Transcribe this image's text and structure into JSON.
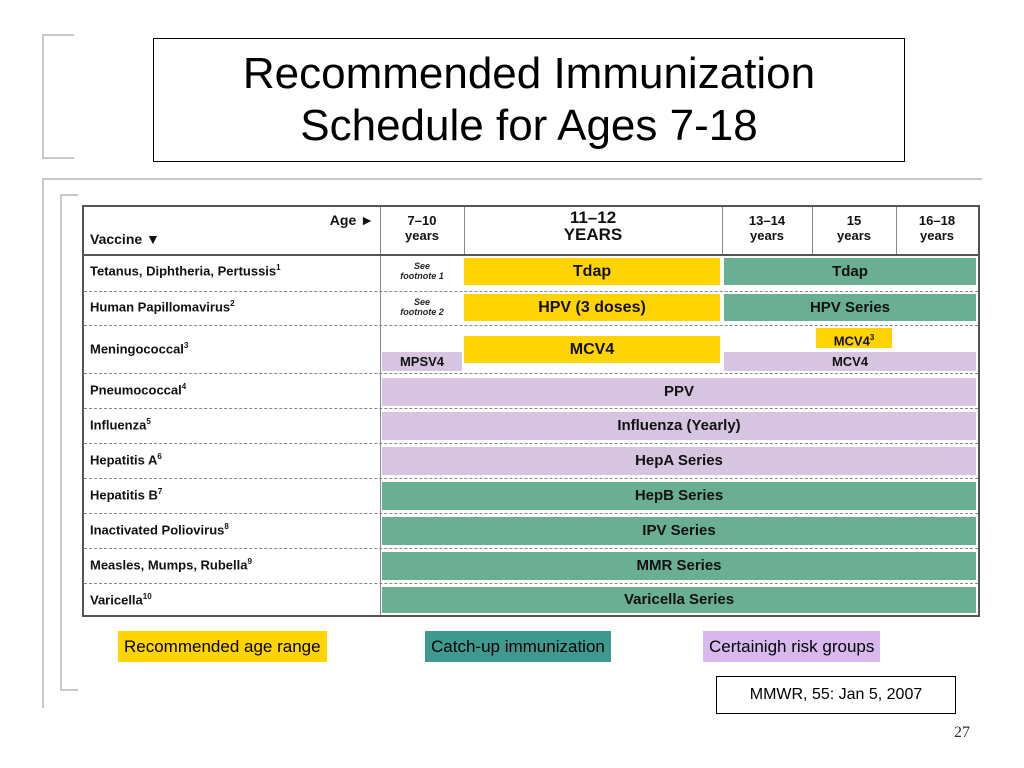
{
  "slide": {
    "title": "Recommended Immunization\nSchedule for Ages 7-18",
    "page_number": "27",
    "source": "MMWR, 55: Jan 5, 2007"
  },
  "table": {
    "age_header": "Age ►",
    "vaccine_header": "Vaccine ▼",
    "columns": [
      {
        "line1": "7–10",
        "line2": "years"
      },
      {
        "line1": "11–12",
        "line2": "YEARS"
      },
      {
        "line1": "13–14",
        "line2": "years"
      },
      {
        "line1": "15",
        "line2": "years"
      },
      {
        "line1": "16–18",
        "line2": "years"
      }
    ],
    "vaccines": [
      {
        "name": "Tetanus, Diphtheria, Pertussis",
        "note": "1"
      },
      {
        "name": "Human Papillomavirus",
        "note": "2"
      },
      {
        "name": "Meningococcal",
        "note": "3"
      },
      {
        "name": "Pneumococcal",
        "note": "4"
      },
      {
        "name": "Influenza",
        "note": "5"
      },
      {
        "name": "Hepatitis A",
        "note": "6"
      },
      {
        "name": "Hepatitis B",
        "note": "7"
      },
      {
        "name": "Inactivated Poliovirus",
        "note": "8"
      },
      {
        "name": "Measles, Mumps, Rubella",
        "note": "9"
      },
      {
        "name": "Varicella",
        "note": "10"
      }
    ],
    "footnotes": [
      {
        "line1": "See",
        "line2": "footnote 1"
      },
      {
        "line1": "See",
        "line2": "footnote 2"
      }
    ],
    "bars": {
      "tdap_main": "Tdap",
      "tdap_catchup": "Tdap",
      "hpv_main": "HPV (3 doses)",
      "hpv_catchup": "HPV Series",
      "mcv4_main": "MCV4",
      "mcv4_15": "MCV4",
      "mcv4_15_note": "3",
      "mpsv4": "MPSV4",
      "mcv4_risk": "MCV4",
      "ppv": "PPV",
      "influenza": "Influenza (Yearly)",
      "hepa": "HepA Series",
      "hepb": "HepB Series",
      "ipv": "IPV Series",
      "mmr": "MMR Series",
      "varicella": "Varicella Series"
    }
  },
  "legend": [
    {
      "label": "Recommended age range",
      "color": "#ffd400"
    },
    {
      "label": "Catch-up immunization",
      "color": "#3e9a8e"
    },
    {
      "label": "Certainigh risk groups",
      "color": "#d9b8ee"
    }
  ],
  "colors": {
    "recommended": "#ffd400",
    "catchup": "#6aaf94",
    "high_risk": "#d6c4e0"
  }
}
